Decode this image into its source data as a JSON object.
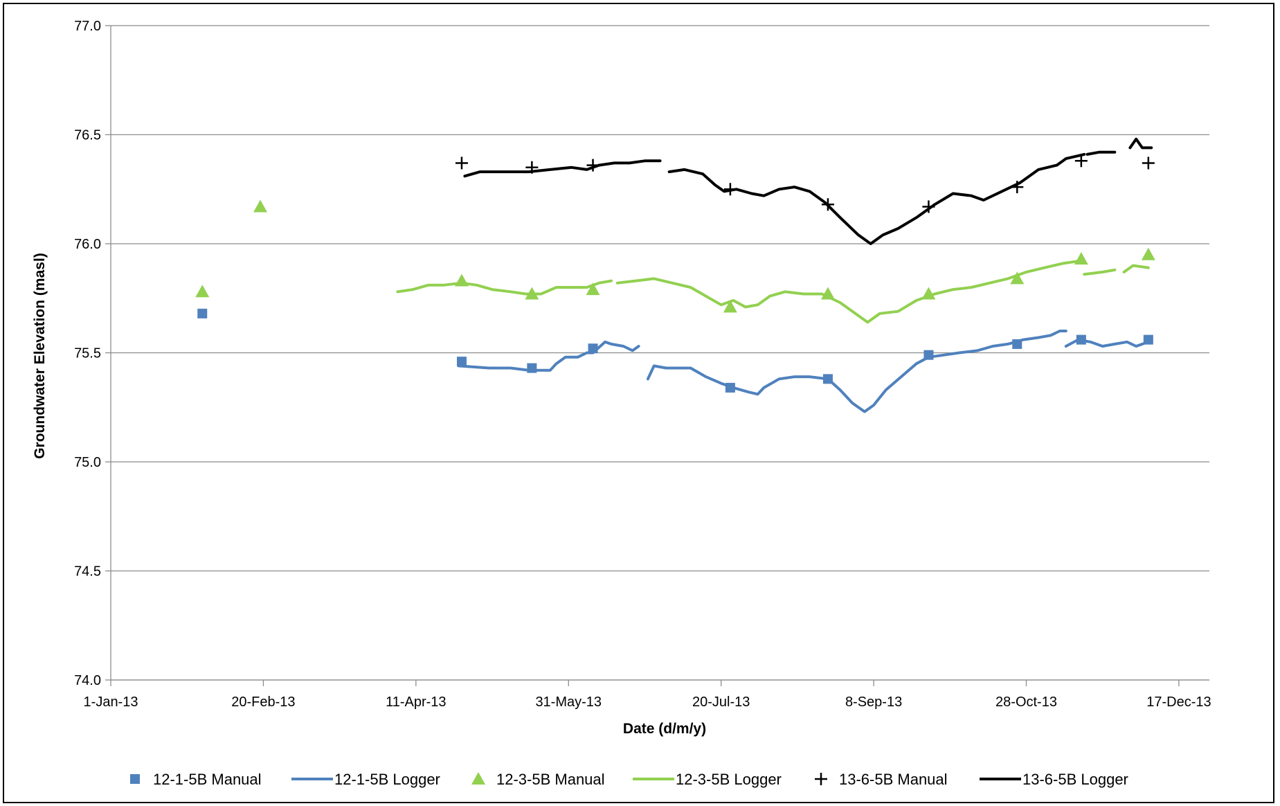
{
  "chart_data": {
    "type": "line",
    "title": "",
    "xlabel": "Date (d/m/y)",
    "ylabel": "Groundwater Elevation (masl)",
    "x_ticks": [
      "1-Jan-13",
      "20-Feb-13",
      "11-Apr-13",
      "31-May-13",
      "20-Jul-13",
      "8-Sep-13",
      "28-Oct-13",
      "17-Dec-13"
    ],
    "xlim": [
      "2013-01-01",
      "2013-12-27"
    ],
    "ylim": [
      74.0,
      77.0
    ],
    "y_ticks": [
      "74.0",
      "74.5",
      "75.0",
      "75.5",
      "76.0",
      "76.5",
      "77.0"
    ],
    "grid": "horizontal",
    "legend_position": "bottom",
    "colors": {
      "blue": "#4F81BD",
      "green": "#92D050",
      "black": "#000000"
    },
    "series": [
      {
        "name": "12-1-5B Manual",
        "kind": "manual",
        "marker": "square",
        "color": "#4F81BD",
        "points": [
          [
            "2013-01-31",
            75.68
          ],
          [
            "2013-04-26",
            75.46
          ],
          [
            "2013-05-19",
            75.43
          ],
          [
            "2013-06-08",
            75.52
          ],
          [
            "2013-07-23",
            75.34
          ],
          [
            "2013-08-24",
            75.38
          ],
          [
            "2013-09-26",
            75.49
          ],
          [
            "2013-10-25",
            75.54
          ],
          [
            "2013-11-15",
            75.56
          ],
          [
            "2013-12-07",
            75.56
          ]
        ]
      },
      {
        "name": "12-1-5B Logger",
        "kind": "logger",
        "color": "#4F81BD",
        "segments": [
          [
            [
              "2013-04-25",
              75.44
            ],
            [
              "2013-05-05",
              75.43
            ],
            [
              "2013-05-12",
              75.43
            ],
            [
              "2013-05-18",
              75.42
            ],
            [
              "2013-05-22",
              75.42
            ],
            [
              "2013-05-25",
              75.42
            ],
            [
              "2013-05-27",
              75.45
            ],
            [
              "2013-05-30",
              75.48
            ],
            [
              "2013-06-03",
              75.48
            ],
            [
              "2013-06-06",
              75.5
            ],
            [
              "2013-06-08",
              75.5
            ],
            [
              "2013-06-12",
              75.55
            ],
            [
              "2013-06-14",
              75.54
            ],
            [
              "2013-06-18",
              75.53
            ],
            [
              "2013-06-21",
              75.51
            ],
            [
              "2013-06-23",
              75.53
            ]
          ],
          [
            [
              "2013-06-26",
              75.38
            ],
            [
              "2013-06-28",
              75.44
            ],
            [
              "2013-07-02",
              75.43
            ],
            [
              "2013-07-06",
              75.43
            ],
            [
              "2013-07-10",
              75.43
            ],
            [
              "2013-07-15",
              75.39
            ],
            [
              "2013-07-20",
              75.36
            ],
            [
              "2013-07-24",
              75.34
            ],
            [
              "2013-07-29",
              75.32
            ],
            [
              "2013-08-01",
              75.31
            ],
            [
              "2013-08-03",
              75.34
            ],
            [
              "2013-08-08",
              75.38
            ],
            [
              "2013-08-13",
              75.39
            ],
            [
              "2013-08-18",
              75.39
            ],
            [
              "2013-08-24",
              75.38
            ],
            [
              "2013-08-28",
              75.33
            ],
            [
              "2013-09-01",
              75.27
            ],
            [
              "2013-09-05",
              75.23
            ],
            [
              "2013-09-08",
              75.26
            ],
            [
              "2013-09-12",
              75.33
            ],
            [
              "2013-09-17",
              75.39
            ],
            [
              "2013-09-22",
              75.45
            ],
            [
              "2013-09-26",
              75.48
            ],
            [
              "2013-10-01",
              75.49
            ],
            [
              "2013-10-06",
              75.5
            ],
            [
              "2013-10-12",
              75.51
            ],
            [
              "2013-10-17",
              75.53
            ],
            [
              "2013-10-22",
              75.54
            ],
            [
              "2013-10-27",
              75.56
            ],
            [
              "2013-11-01",
              75.57
            ],
            [
              "2013-11-05",
              75.58
            ],
            [
              "2013-11-08",
              75.6
            ],
            [
              "2013-11-10",
              75.6
            ]
          ],
          [
            [
              "2013-11-10",
              75.53
            ],
            [
              "2013-11-14",
              75.56
            ],
            [
              "2013-11-18",
              75.55
            ],
            [
              "2013-11-22",
              75.53
            ],
            [
              "2013-11-26",
              75.54
            ],
            [
              "2013-11-30",
              75.55
            ],
            [
              "2013-12-03",
              75.53
            ],
            [
              "2013-12-07",
              75.55
            ]
          ]
        ]
      },
      {
        "name": "12-3-5B Manual",
        "kind": "manual",
        "marker": "triangle",
        "color": "#92D050",
        "points": [
          [
            "2013-01-31",
            75.78
          ],
          [
            "2013-02-19",
            76.17
          ],
          [
            "2013-04-26",
            75.83
          ],
          [
            "2013-05-19",
            75.77
          ],
          [
            "2013-06-08",
            75.79
          ],
          [
            "2013-07-23",
            75.71
          ],
          [
            "2013-08-24",
            75.77
          ],
          [
            "2013-09-26",
            75.77
          ],
          [
            "2013-10-25",
            75.84
          ],
          [
            "2013-11-15",
            75.93
          ],
          [
            "2013-12-07",
            75.95
          ]
        ]
      },
      {
        "name": "12-3-5B Logger",
        "kind": "logger",
        "color": "#92D050",
        "segments": [
          [
            [
              "2013-04-05",
              75.78
            ],
            [
              "2013-04-10",
              75.79
            ],
            [
              "2013-04-15",
              75.81
            ],
            [
              "2013-04-20",
              75.81
            ],
            [
              "2013-04-26",
              75.82
            ],
            [
              "2013-05-01",
              75.81
            ],
            [
              "2013-05-06",
              75.79
            ],
            [
              "2013-05-12",
              75.78
            ],
            [
              "2013-05-17",
              75.77
            ],
            [
              "2013-05-22",
              75.77
            ],
            [
              "2013-05-27",
              75.8
            ],
            [
              "2013-06-01",
              75.8
            ],
            [
              "2013-06-06",
              75.8
            ],
            [
              "2013-06-10",
              75.82
            ],
            [
              "2013-06-14",
              75.83
            ]
          ],
          [
            [
              "2013-06-16",
              75.82
            ],
            [
              "2013-06-22",
              75.83
            ],
            [
              "2013-06-28",
              75.84
            ],
            [
              "2013-07-04",
              75.82
            ],
            [
              "2013-07-10",
              75.8
            ],
            [
              "2013-07-15",
              75.76
            ],
            [
              "2013-07-20",
              75.72
            ],
            [
              "2013-07-24",
              75.74
            ],
            [
              "2013-07-28",
              75.71
            ],
            [
              "2013-08-01",
              75.72
            ],
            [
              "2013-08-05",
              75.76
            ],
            [
              "2013-08-10",
              75.78
            ],
            [
              "2013-08-16",
              75.77
            ],
            [
              "2013-08-22",
              75.77
            ],
            [
              "2013-08-28",
              75.73
            ],
            [
              "2013-09-02",
              75.68
            ],
            [
              "2013-09-06",
              75.64
            ],
            [
              "2013-09-10",
              75.68
            ],
            [
              "2013-09-16",
              75.69
            ],
            [
              "2013-09-22",
              75.74
            ],
            [
              "2013-09-28",
              75.77
            ],
            [
              "2013-10-04",
              75.79
            ],
            [
              "2013-10-10",
              75.8
            ],
            [
              "2013-10-16",
              75.82
            ],
            [
              "2013-10-22",
              75.84
            ],
            [
              "2013-10-28",
              75.87
            ],
            [
              "2013-11-03",
              75.89
            ],
            [
              "2013-11-09",
              75.91
            ],
            [
              "2013-11-14",
              75.92
            ]
          ],
          [
            [
              "2013-11-16",
              75.86
            ],
            [
              "2013-11-22",
              75.87
            ],
            [
              "2013-11-26",
              75.88
            ]
          ],
          [
            [
              "2013-11-29",
              75.87
            ],
            [
              "2013-12-02",
              75.9
            ],
            [
              "2013-12-07",
              75.89
            ]
          ]
        ]
      },
      {
        "name": "13-6-5B Manual",
        "kind": "manual",
        "marker": "plus",
        "color": "#000000",
        "points": [
          [
            "2013-04-26",
            76.37
          ],
          [
            "2013-05-19",
            76.35
          ],
          [
            "2013-06-08",
            76.36
          ],
          [
            "2013-07-23",
            76.25
          ],
          [
            "2013-08-24",
            76.18
          ],
          [
            "2013-09-26",
            76.17
          ],
          [
            "2013-10-25",
            76.26
          ],
          [
            "2013-11-15",
            76.38
          ],
          [
            "2013-12-07",
            76.37
          ]
        ]
      },
      {
        "name": "13-6-5B Logger",
        "kind": "logger",
        "color": "#000000",
        "segments": [
          [
            [
              "2013-04-27",
              76.31
            ],
            [
              "2013-05-02",
              76.33
            ],
            [
              "2013-05-10",
              76.33
            ],
            [
              "2013-05-18",
              76.33
            ],
            [
              "2013-05-25",
              76.34
            ],
            [
              "2013-06-01",
              76.35
            ],
            [
              "2013-06-06",
              76.34
            ],
            [
              "2013-06-10",
              76.36
            ],
            [
              "2013-06-15",
              76.37
            ],
            [
              "2013-06-20",
              76.37
            ],
            [
              "2013-06-25",
              76.38
            ],
            [
              "2013-06-30",
              76.38
            ]
          ],
          [
            [
              "2013-07-03",
              76.33
            ],
            [
              "2013-07-08",
              76.34
            ],
            [
              "2013-07-14",
              76.32
            ],
            [
              "2013-07-18",
              76.27
            ],
            [
              "2013-07-21",
              76.24
            ],
            [
              "2013-07-25",
              76.25
            ],
            [
              "2013-07-30",
              76.23
            ],
            [
              "2013-08-03",
              76.22
            ],
            [
              "2013-08-08",
              76.25
            ],
            [
              "2013-08-13",
              76.26
            ],
            [
              "2013-08-18",
              76.24
            ],
            [
              "2013-08-23",
              76.19
            ],
            [
              "2013-08-28",
              76.12
            ],
            [
              "2013-09-03",
              76.04
            ],
            [
              "2013-09-07",
              76.0
            ],
            [
              "2013-09-11",
              76.04
            ],
            [
              "2013-09-16",
              76.07
            ],
            [
              "2013-09-22",
              76.12
            ],
            [
              "2013-09-28",
              76.18
            ],
            [
              "2013-10-04",
              76.23
            ],
            [
              "2013-10-10",
              76.22
            ],
            [
              "2013-10-14",
              76.2
            ],
            [
              "2013-10-20",
              76.24
            ],
            [
              "2013-10-26",
              76.28
            ],
            [
              "2013-11-01",
              76.34
            ],
            [
              "2013-11-07",
              76.36
            ],
            [
              "2013-11-10",
              76.39
            ],
            [
              "2013-11-16",
              76.41
            ]
          ],
          [
            [
              "2013-11-17",
              76.41
            ],
            [
              "2013-11-21",
              76.42
            ],
            [
              "2013-11-26",
              76.42
            ]
          ],
          [
            [
              "2013-12-01",
              76.44
            ],
            [
              "2013-12-03",
              76.48
            ],
            [
              "2013-12-05",
              76.44
            ],
            [
              "2013-12-08",
              76.44
            ]
          ]
        ]
      }
    ]
  }
}
